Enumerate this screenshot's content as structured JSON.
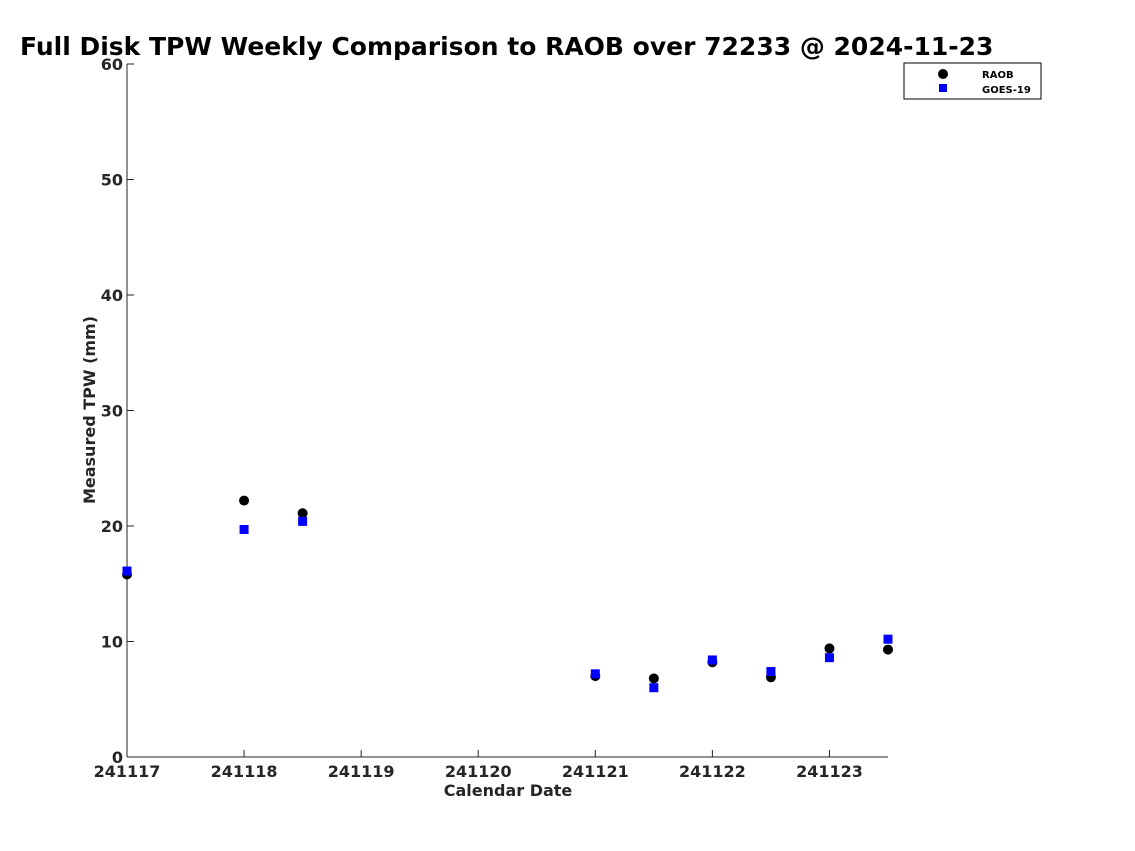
{
  "chart_data": {
    "type": "scatter",
    "title": "Full Disk TPW Weekly Comparison to RAOB over 72233 @ 2024-11-23",
    "xlabel": "Calendar Date",
    "ylabel": "Measured TPW (mm)",
    "xlim": [
      241117,
      241123.5
    ],
    "ylim": [
      0,
      60
    ],
    "xticks": [
      241117,
      241118,
      241119,
      241120,
      241121,
      241122,
      241123
    ],
    "xtick_labels": [
      "241117",
      "241118",
      "241119",
      "241120",
      "241121",
      "241122",
      "241123"
    ],
    "yticks": [
      0,
      10,
      20,
      30,
      40,
      50,
      60
    ],
    "ytick_labels": [
      "0",
      "10",
      "20",
      "30",
      "40",
      "50",
      "60"
    ],
    "grid": false,
    "legend_position": "top-right",
    "series": [
      {
        "name": "RAOB",
        "marker": "circle",
        "color": "#000000",
        "x": [
          241117,
          241118,
          241118.5,
          241121,
          241121.5,
          241122,
          241122.5,
          241123,
          241123.5
        ],
        "y": [
          15.8,
          22.2,
          21.1,
          7.0,
          6.8,
          8.2,
          6.9,
          9.4,
          9.3
        ]
      },
      {
        "name": "GOES-19",
        "marker": "square",
        "color": "#0000ff",
        "x": [
          241117,
          241118,
          241118.5,
          241121,
          241121.5,
          241122,
          241122.5,
          241123,
          241123.5
        ],
        "y": [
          16.1,
          19.7,
          20.4,
          7.2,
          6.0,
          8.4,
          7.4,
          8.6,
          10.2
        ]
      }
    ]
  }
}
